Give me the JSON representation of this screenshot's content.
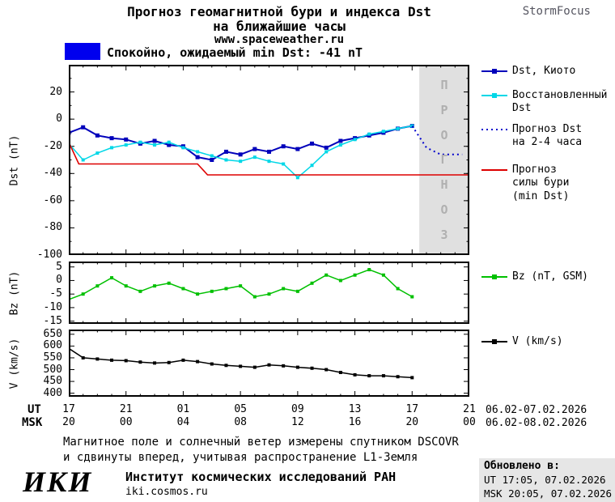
{
  "header": {
    "title_line1": "Прогноз геомагнитной бури и индекса Dst",
    "title_line2": "на ближайшие часы",
    "site": "www.spaceweather.ru",
    "brand": "StormFocus"
  },
  "status": {
    "swatch_color": "#0000ee",
    "text": "Спокойно, ожидаемый min Dst: -41 nT"
  },
  "forecast_band": {
    "label": "ПРОГНОЗ",
    "color": "#e0e0e0",
    "label_color": "#b0b0b0"
  },
  "legend": {
    "items": [
      {
        "label_lines": [
          "Dst, Киото"
        ],
        "color": "#0000bb",
        "style": "solid-marker"
      },
      {
        "label_lines": [
          "Восстановленный",
          "Dst"
        ],
        "color": "#00d7e7",
        "style": "solid-marker"
      },
      {
        "label_lines": [
          "Прогноз Dst",
          "на 2-4 часа"
        ],
        "color": "#0000cc",
        "style": "dotted"
      },
      {
        "label_lines": [
          "Прогноз",
          "силы бури",
          "(min Dst)"
        ],
        "color": "#dd0000",
        "style": "solid"
      },
      {
        "label_lines": [
          "Bz (nT, GSM)"
        ],
        "color": "#00c000",
        "style": "solid-marker"
      },
      {
        "label_lines": [
          "V (km/s)"
        ],
        "color": "#000000",
        "style": "solid-marker"
      }
    ]
  },
  "axes": {
    "ut_row_label": "UT",
    "msk_row_label": "MSK",
    "ut_ticks": [
      "17",
      "21",
      "01",
      "05",
      "09",
      "13",
      "17",
      "21"
    ],
    "msk_ticks": [
      "20",
      "00",
      "04",
      "08",
      "12",
      "16",
      "20",
      "00"
    ],
    "ut_dates": "06.02-07.02.2026",
    "msk_dates": "06.02-08.02.2026"
  },
  "footnote": {
    "line1": "Магнитное поле и солнечный ветер измерены спутником DSCOVR",
    "line2": "и сдвинуты вперед, учитывая распространение L1-Земля"
  },
  "footer": {
    "logo": "ИКИ",
    "institute": "Институт космических исследований РАН",
    "site": "iki.cosmos.ru",
    "updated_label": "Обновлено в:",
    "updated_ut": "UT  17:05, 07.02.2026",
    "updated_msk": "MSK 20:05, 07.02.2026"
  },
  "chart_data": [
    {
      "type": "line",
      "name": "dst-panel",
      "ylabel": "Dst (nT)",
      "xlim": [
        0,
        28
      ],
      "ylim": [
        -100,
        40
      ],
      "yticks": [
        20,
        0,
        -20,
        -40,
        -60,
        -80,
        -100
      ],
      "y_minor_step": 10,
      "x_major_step": 4,
      "x_minor_step": 1,
      "forecast_band": [
        24.5,
        28
      ],
      "series": [
        {
          "name": "Dst, Киото",
          "color": "#0000bb",
          "width": 2,
          "marker": 5,
          "x": [
            0,
            1,
            2,
            3,
            4,
            5,
            6,
            7,
            8,
            9,
            10,
            11,
            12,
            13,
            14,
            15,
            16,
            17,
            18,
            19,
            20,
            21,
            22,
            23,
            24
          ],
          "y": [
            -10,
            -6,
            -12,
            -14,
            -15,
            -18,
            -16,
            -19,
            -20,
            -28,
            -30,
            -24,
            -26,
            -22,
            -24,
            -20,
            -22,
            -18,
            -21,
            -16,
            -14,
            -12,
            -10,
            -7,
            -5
          ]
        },
        {
          "name": "Восстановленный Dst",
          "color": "#00d7e7",
          "width": 1.5,
          "marker": 4,
          "x": [
            0,
            1,
            2,
            3,
            4,
            5,
            6,
            7,
            8,
            9,
            10,
            11,
            12,
            13,
            14,
            15,
            16,
            17,
            18,
            19,
            20,
            21,
            22,
            23,
            24
          ],
          "y": [
            -18,
            -30,
            -25,
            -21,
            -19,
            -17,
            -19,
            -17,
            -21,
            -24,
            -27,
            -30,
            -31,
            -28,
            -31,
            -33,
            -43,
            -34,
            -24,
            -19,
            -15,
            -11,
            -9,
            -7,
            -5
          ]
        },
        {
          "name": "Прогноз Dst на 2-4 часа",
          "color": "#0000cc",
          "width": 2,
          "dash": "2,4",
          "x": [
            24,
            25,
            26,
            27.5
          ],
          "y": [
            -5,
            -21,
            -26,
            -26
          ]
        },
        {
          "name": "Прогноз силы бури (min Dst)",
          "color": "#dd0000",
          "width": 1.6,
          "x": [
            0,
            0.7,
            9,
            9.7,
            28
          ],
          "y": [
            -17,
            -33,
            -33,
            -41,
            -41
          ]
        }
      ]
    },
    {
      "type": "line",
      "name": "bz-panel",
      "ylabel": "Bz (nT)",
      "xlim": [
        0,
        28
      ],
      "ylim": [
        -16,
        7
      ],
      "yticks": [
        5,
        0,
        -5,
        -10,
        -15
      ],
      "x_major_step": 4,
      "x_minor_step": 1,
      "series": [
        {
          "name": "Bz (nT, GSM)",
          "color": "#00c000",
          "width": 1.5,
          "marker": 4,
          "x": [
            0,
            1,
            2,
            3,
            4,
            5,
            6,
            7,
            8,
            9,
            10,
            11,
            12,
            13,
            14,
            15,
            16,
            17,
            18,
            19,
            20,
            21,
            22,
            23,
            24
          ],
          "y": [
            -7,
            -5,
            -2,
            1,
            -2,
            -4,
            -2,
            -1,
            -3,
            -5,
            -4,
            -3,
            -2,
            -6,
            -5,
            -3,
            -4,
            -1,
            2,
            0,
            2,
            4,
            2,
            -3,
            -6
          ]
        }
      ]
    },
    {
      "type": "line",
      "name": "v-panel",
      "ylabel": "V (km/s)",
      "xlim": [
        0,
        28
      ],
      "ylim": [
        385,
        670
      ],
      "yticks": [
        650,
        600,
        550,
        500,
        450,
        400
      ],
      "x_major_step": 4,
      "x_minor_step": 1,
      "series": [
        {
          "name": "V (km/s)",
          "color": "#000000",
          "width": 1.5,
          "marker": 4,
          "x": [
            0,
            1,
            2,
            3,
            4,
            5,
            6,
            7,
            8,
            9,
            10,
            11,
            12,
            13,
            14,
            15,
            16,
            17,
            18,
            19,
            20,
            21,
            22,
            23,
            24
          ],
          "y": [
            590,
            550,
            545,
            540,
            538,
            532,
            528,
            530,
            540,
            534,
            524,
            518,
            514,
            510,
            520,
            516,
            510,
            506,
            500,
            488,
            478,
            474,
            474,
            470,
            466
          ]
        }
      ]
    }
  ]
}
